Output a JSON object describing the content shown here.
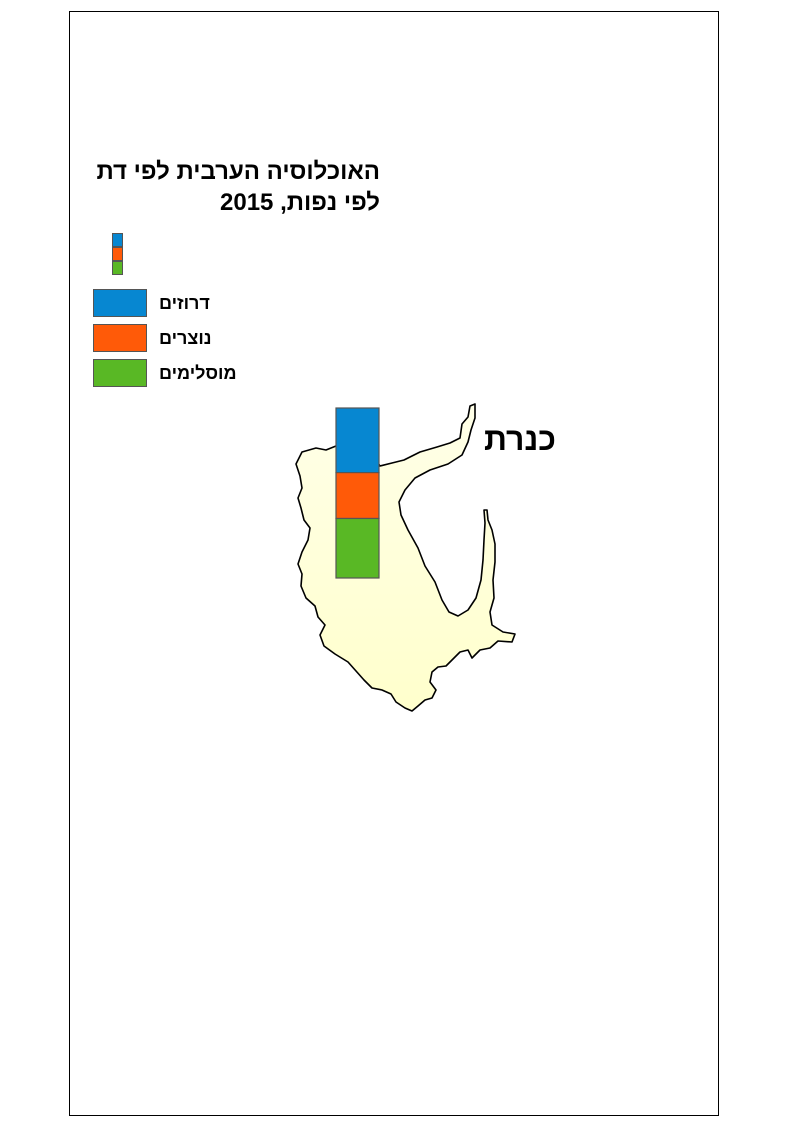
{
  "map": {
    "title_line1": "האוכלוסיה הערבית לפי דת",
    "title_line2": "לפי נפות, 2015",
    "region_name": "כנרת",
    "fill_color": "#ffffd6"
  },
  "legend": {
    "items": [
      {
        "label": "דרוזים",
        "color": "#0787d1"
      },
      {
        "label": "נוצרים",
        "color": "#ff5a08"
      },
      {
        "label": "מוסלימים",
        "color": "#59b825"
      }
    ]
  },
  "chart_data": {
    "type": "bar",
    "stacked": true,
    "categories": [
      "כנרת"
    ],
    "series": [
      {
        "name": "דרוזים",
        "values": [
          0.38
        ]
      },
      {
        "name": "נוצרים",
        "values": [
          0.27
        ]
      },
      {
        "name": "מוסלימים",
        "values": [
          0.35
        ]
      }
    ]
  }
}
